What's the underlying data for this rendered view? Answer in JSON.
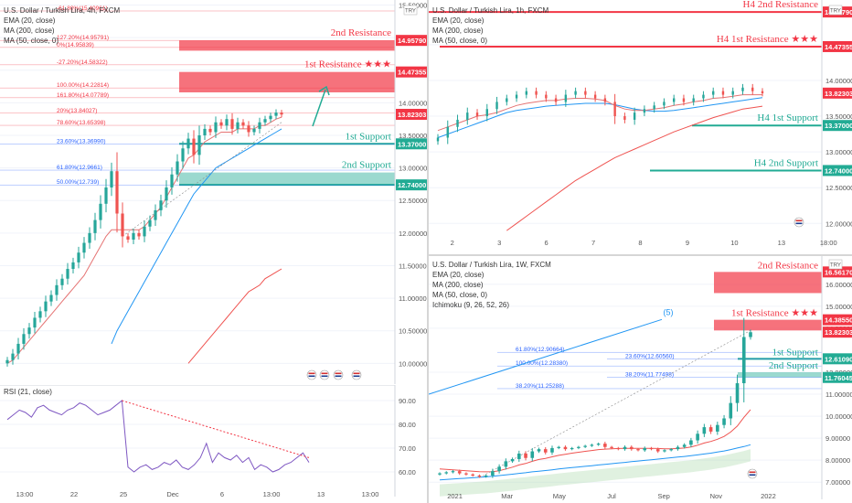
{
  "chart_data": [
    {
      "type": "line",
      "name": "4h",
      "legend": [
        "U.S. Dollar / Turkish Lira, 4h, FXCM",
        "EMA (20, close)",
        "MA (200, close)",
        "MA (50, close, 0)"
      ],
      "xticks": [
        "13:00",
        "22",
        "25",
        "Dec",
        "6",
        "13:00",
        "13",
        "13:00"
      ],
      "ylim": [
        9.85,
        15.55
      ],
      "yticks": [
        "15.50000",
        "15.00000",
        "14.50000",
        "14.00000",
        "13.50000",
        "13.00000",
        "12.50000",
        "12.00000",
        "11.50000",
        "11.00000",
        "10.50000",
        "10.00000"
      ],
      "price_labels": [
        {
          "text": "14.95790",
          "value": 14.9579,
          "color": "#f23645"
        },
        {
          "text": "14.47355",
          "value": 14.47355,
          "color": "#f23645"
        },
        {
          "text": "13.82303",
          "value": 13.82303,
          "color": "#f23645"
        },
        {
          "text": "13.37000",
          "value": 13.37,
          "color": "#22ab94"
        },
        {
          "text": "12.74000",
          "value": 12.74,
          "color": "#22ab94"
        }
      ],
      "zones": [
        {
          "label": "2nd Resistance",
          "top": 14.9579,
          "bottom": 14.8,
          "color": "#f23645"
        },
        {
          "label": "1st Resistance ★★★",
          "top": 14.47355,
          "bottom": 14.16,
          "color": "#f23645"
        },
        {
          "label": "1st Support",
          "top": 13.37,
          "bottom": 13.37,
          "color": "#22ab94"
        },
        {
          "label": "2nd Support",
          "top": 12.93,
          "bottom": 12.74,
          "color": "#22ab94"
        }
      ],
      "fib_levels": [
        {
          "text": "-61.80%(15.40961)",
          "value": 15.40961,
          "color": "#f23645"
        },
        {
          "text": "127.20%(14.95791)",
          "value": 14.95791,
          "color": "#f23645"
        },
        {
          "text": "0%(14.95839)",
          "value": 14.85,
          "color": "#f23645"
        },
        {
          "text": "-27.20%(14.58322)",
          "value": 14.58322,
          "color": "#f23645"
        },
        {
          "text": "100.00%(14.22814)",
          "value": 14.22814,
          "color": "#f23645"
        },
        {
          "text": "161.80%(14.07789)",
          "value": 14.07789,
          "color": "#f23645"
        },
        {
          "text": "20%(13.84027)",
          "value": 13.84027,
          "color": "#f23645"
        },
        {
          "text": "78.60%(13.65398)",
          "value": 13.65398,
          "color": "#f23645"
        },
        {
          "text": "23.60%(13.36990)",
          "value": 13.3699,
          "color": "#2962ff"
        },
        {
          "text": "61.80%(12.9661)",
          "value": 12.9661,
          "color": "#2962ff"
        },
        {
          "text": "50.00%(12.739)",
          "value": 12.739,
          "color": "#2962ff"
        }
      ],
      "close": [
        10.05,
        10.15,
        10.3,
        10.45,
        10.55,
        10.7,
        10.8,
        10.95,
        11.05,
        11.2,
        11.3,
        11.45,
        11.55,
        11.7,
        11.85,
        12.0,
        12.2,
        12.45,
        12.7,
        12.95,
        12.3,
        11.95,
        11.9,
        12.0,
        11.95,
        12.1,
        12.2,
        12.35,
        12.5,
        12.7,
        12.9,
        13.1,
        13.3,
        13.45,
        13.2,
        13.5,
        13.6,
        13.55,
        13.7,
        13.65,
        13.75,
        13.6,
        13.7,
        13.65,
        13.55,
        13.6,
        13.7,
        13.75,
        13.8,
        13.85,
        13.82
      ],
      "ema20": [
        10.0,
        10.05,
        10.15,
        10.25,
        10.35,
        10.45,
        10.55,
        10.65,
        10.75,
        10.85,
        10.95,
        11.05,
        11.15,
        11.25,
        11.35,
        11.5,
        11.65,
        11.8,
        11.95,
        12.05,
        12.05,
        12.05,
        12.05,
        12.05,
        12.05,
        12.1,
        12.2,
        12.3,
        12.4,
        12.55,
        12.7,
        12.85,
        13.0,
        13.15,
        13.2,
        13.3,
        13.4,
        13.45,
        13.5,
        13.55,
        13.55,
        13.55,
        13.6,
        13.6,
        13.6,
        13.6,
        13.65,
        13.65,
        13.7,
        13.75,
        13.78
      ],
      "ma50": [
        null,
        null,
        null,
        null,
        null,
        null,
        null,
        null,
        null,
        null,
        null,
        null,
        null,
        null,
        null,
        null,
        null,
        null,
        null,
        10.3,
        10.5,
        10.65,
        10.8,
        10.95,
        11.1,
        11.25,
        11.4,
        11.55,
        11.7,
        11.85,
        12.0,
        12.15,
        12.3,
        12.45,
        12.6,
        12.7,
        12.8,
        12.9,
        13.0,
        13.05,
        13.1,
        13.15,
        13.2,
        13.25,
        13.3,
        13.35,
        13.4,
        13.45,
        13.5,
        13.55,
        13.6
      ],
      "ma200": [
        null,
        null,
        null,
        null,
        null,
        null,
        null,
        null,
        null,
        null,
        null,
        null,
        null,
        null,
        null,
        null,
        null,
        null,
        null,
        null,
        null,
        null,
        null,
        null,
        null,
        null,
        null,
        null,
        null,
        null,
        null,
        null,
        null,
        10.0,
        10.1,
        10.2,
        10.3,
        10.4,
        10.5,
        10.6,
        10.7,
        10.8,
        10.9,
        11.0,
        11.1,
        11.15,
        11.2,
        11.3,
        11.35,
        11.4,
        11.45
      ]
    },
    {
      "type": "line",
      "name": "RSI",
      "legend": [
        "RSI (21, close)"
      ],
      "ylim": [
        55,
        95
      ],
      "yticks": [
        "90.00",
        "80.00",
        "70.00",
        "60.00"
      ],
      "values": [
        82,
        84,
        86,
        85,
        83,
        87,
        88,
        86,
        85,
        84,
        86,
        87,
        89,
        88,
        86,
        84,
        85,
        86,
        88,
        90,
        62,
        60,
        62,
        63,
        61,
        62,
        64,
        63,
        65,
        62,
        61,
        63,
        66,
        72,
        64,
        68,
        66,
        65,
        67,
        64,
        66,
        61,
        63,
        62,
        60,
        61,
        63,
        64,
        66,
        68,
        64
      ]
    },
    {
      "type": "line",
      "name": "1h",
      "legend": [
        "U.S. Dollar / Turkish Lira, 1h, FXCM",
        "EMA (20, close)",
        "MA (200, close)",
        "MA (50, close, 0)"
      ],
      "xticks": [
        "2",
        "3",
        "6",
        "7",
        "8",
        "9",
        "10",
        "13",
        "18:00"
      ],
      "ylim": [
        11.85,
        15.1
      ],
      "yticks": [
        "14.50000",
        "14.00000",
        "13.50000",
        "13.00000",
        "12.50000",
        "12.00000"
      ],
      "price_labels": [
        {
          "text": "14.95790",
          "value": 14.9579,
          "color": "#f23645"
        },
        {
          "text": "14.47355",
          "value": 14.47355,
          "color": "#f23645"
        },
        {
          "text": "13.82303",
          "value": 13.82303,
          "color": "#f23645"
        },
        {
          "text": "13.37000",
          "value": 13.37,
          "color": "#22ab94"
        },
        {
          "text": "12.74000",
          "value": 12.74,
          "color": "#22ab94"
        }
      ],
      "levels": [
        {
          "label": "H4 2nd Resistance",
          "value": 14.9579,
          "color": "#f23645"
        },
        {
          "label": "H4 1st Resistance ★★★",
          "value": 14.47355,
          "color": "#f23645"
        },
        {
          "label": "H4 1st Support",
          "value": 13.37,
          "color": "#22ab94"
        },
        {
          "label": "H4 2nd Support",
          "value": 12.74,
          "color": "#22ab94"
        }
      ],
      "close": [
        13.2,
        13.35,
        13.45,
        13.55,
        13.5,
        13.6,
        13.7,
        13.75,
        13.8,
        13.85,
        13.8,
        13.75,
        13.7,
        13.8,
        13.85,
        13.8,
        13.75,
        13.7,
        13.5,
        13.45,
        13.55,
        13.6,
        13.65,
        13.7,
        13.75,
        13.7,
        13.75,
        13.8,
        13.85,
        13.8,
        13.85,
        13.9,
        13.85,
        13.82
      ],
      "ema20": [
        13.3,
        13.35,
        13.4,
        13.45,
        13.5,
        13.52,
        13.55,
        13.6,
        13.65,
        13.68,
        13.7,
        13.72,
        13.72,
        13.74,
        13.75,
        13.75,
        13.74,
        13.72,
        13.65,
        13.6,
        13.58,
        13.58,
        13.6,
        13.62,
        13.65,
        13.67,
        13.7,
        13.72,
        13.75,
        13.76,
        13.78,
        13.8,
        13.8,
        13.8
      ],
      "ma50": [
        13.2,
        13.25,
        13.3,
        13.35,
        13.4,
        13.45,
        13.5,
        13.55,
        13.58,
        13.6,
        13.62,
        13.64,
        13.65,
        13.66,
        13.67,
        13.68,
        13.68,
        13.68,
        13.66,
        13.63,
        13.6,
        13.58,
        13.57,
        13.57,
        13.58,
        13.6,
        13.62,
        13.64,
        13.66,
        13.68,
        13.7,
        13.72,
        13.74,
        13.76
      ],
      "ma200": [
        null,
        null,
        null,
        null,
        null,
        null,
        null,
        11.9,
        12.0,
        12.1,
        12.2,
        12.3,
        12.4,
        12.5,
        12.6,
        12.68,
        12.76,
        12.84,
        12.92,
        12.98,
        13.04,
        13.1,
        13.16,
        13.22,
        13.28,
        13.33,
        13.38,
        13.43,
        13.48,
        13.52,
        13.56,
        13.6,
        13.62,
        13.64
      ]
    },
    {
      "type": "line",
      "name": "1W",
      "legend": [
        "U.S. Dollar / Turkish Lira, 1W, FXCM",
        "EMA (20, close)",
        "MA (200, close)",
        "MA (50, close, 0)",
        "Ichimoku (9, 26, 52, 26)"
      ],
      "xticks": [
        "2021",
        "Mar",
        "May",
        "Jul",
        "Sep",
        "Nov",
        "2022"
      ],
      "ylim": [
        6.8,
        17.2
      ],
      "yticks": [
        "16.00000",
        "15.00000",
        "14.00000",
        "12.00000",
        "11.00000",
        "10.00000",
        "9.00000",
        "8.00000",
        "7.00000"
      ],
      "price_labels": [
        {
          "text": "16.56170",
          "value": 16.5617,
          "color": "#f23645"
        },
        {
          "text": "14.38550",
          "value": 14.3855,
          "color": "#f23645"
        },
        {
          "text": "13.82303",
          "value": 13.82303,
          "color": "#f23645"
        },
        {
          "text": "12.61090",
          "value": 12.6109,
          "color": "#22ab94"
        },
        {
          "text": "11.76045",
          "value": 11.76045,
          "color": "#22ab94"
        }
      ],
      "zones": [
        {
          "label": "2nd Resistance",
          "top": 16.5617,
          "bottom": 15.6,
          "color": "#f23645"
        },
        {
          "label": "1st Resistance ★★★",
          "top": 14.3855,
          "bottom": 13.9,
          "color": "#f23645"
        },
        {
          "label": "1st Support",
          "top": 12.6109,
          "bottom": 12.6109,
          "color": "#22ab94"
        },
        {
          "label": "2nd Support",
          "top": 12.0,
          "bottom": 11.76045,
          "color": "#22ab94"
        }
      ],
      "fib_levels": [
        {
          "text": "61.80%(12.90664)",
          "value": 12.90664,
          "color": "#2962ff"
        },
        {
          "text": "23.60%(12.60560)",
          "value": 12.6056,
          "color": "#2962ff"
        },
        {
          "text": "100.00%(12.28380)",
          "value": 12.2838,
          "color": "#2962ff"
        },
        {
          "text": "38.20%(11.77498)",
          "value": 11.77498,
          "color": "#2962ff"
        },
        {
          "text": "38.20%(11.25288)",
          "value": 11.25288,
          "color": "#2962ff"
        }
      ],
      "wave_label": "(5)",
      "close": [
        7.4,
        7.45,
        7.5,
        7.4,
        7.35,
        7.3,
        7.25,
        7.3,
        7.5,
        7.7,
        7.95,
        8.05,
        8.3,
        8.1,
        8.4,
        8.5,
        8.35,
        8.55,
        8.6,
        8.5,
        8.55,
        8.6,
        8.65,
        8.7,
        8.75,
        8.6,
        8.55,
        8.5,
        8.6,
        8.5,
        8.45,
        8.55,
        8.5,
        8.4,
        8.45,
        8.5,
        8.6,
        8.7,
        8.9,
        9.2,
        9.5,
        9.3,
        9.6,
        9.9,
        10.6,
        11.5,
        13.6,
        13.82
      ],
      "ema20": [
        7.6,
        7.58,
        7.56,
        7.54,
        7.52,
        7.5,
        7.48,
        7.47,
        7.48,
        7.52,
        7.6,
        7.68,
        7.78,
        7.85,
        7.95,
        8.03,
        8.08,
        8.15,
        8.22,
        8.27,
        8.32,
        8.36,
        8.4,
        8.44,
        8.48,
        8.5,
        8.52,
        8.53,
        8.54,
        8.54,
        8.54,
        8.54,
        8.54,
        8.53,
        8.52,
        8.52,
        8.53,
        8.55,
        8.6,
        8.68,
        8.78,
        8.85,
        8.95,
        9.08,
        9.28,
        9.55,
        9.95,
        10.3
      ],
      "ma50": [
        7.1,
        7.12,
        7.14,
        7.16,
        7.18,
        7.2,
        7.22,
        7.24,
        7.27,
        7.3,
        7.33,
        7.36,
        7.4,
        7.43,
        7.47,
        7.5,
        7.53,
        7.56,
        7.6,
        7.63,
        7.66,
        7.69,
        7.72,
        7.75,
        7.78,
        7.81,
        7.84,
        7.87,
        7.9,
        7.93,
        7.96,
        7.99,
        8.02,
        8.05,
        8.08,
        8.11,
        8.14,
        8.17,
        8.2,
        8.24,
        8.28,
        8.32,
        8.37,
        8.42,
        8.48,
        8.55,
        8.62,
        8.7
      ]
    }
  ]
}
